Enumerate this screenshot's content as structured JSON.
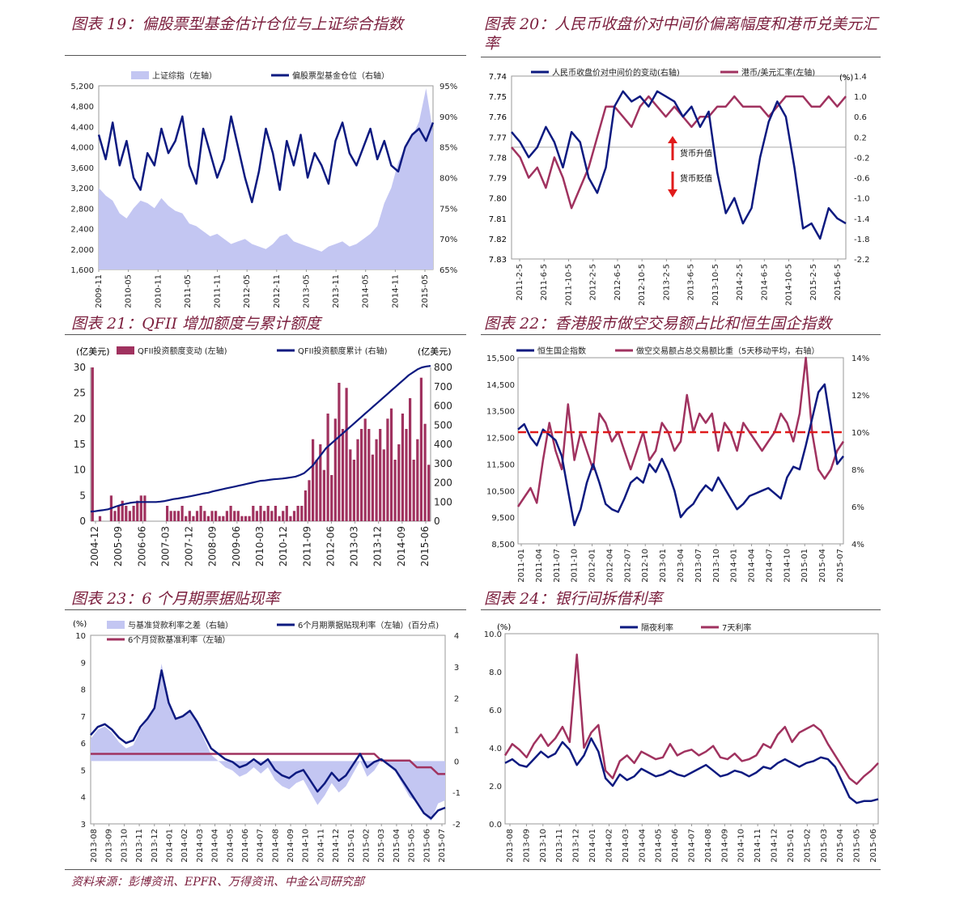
{
  "source": "资料来源：彭博资讯、EPFR、万得资讯、中金公司研究部",
  "colors": {
    "navy": "#0d1a80",
    "maroon": "#a0325f",
    "lav": "#c3c6f2",
    "red": "#e01b1b",
    "title": "#7b1e3d"
  },
  "charts": [
    {
      "id": "c19",
      "title": "图表 19：偏股票型基金估计仓位与上证综合指数",
      "chart_data": {
        "type": "area+line",
        "legend": [
          "上证综指（左轴）",
          "偏股票型基金仓位（右轴）"
        ],
        "left_ticks": [
          "1,600",
          "2,000",
          "2,400",
          "2,800",
          "3,200",
          "3,600",
          "4,000",
          "4,400",
          "4,800",
          "5,200"
        ],
        "right_ticks": [
          "65%",
          "70%",
          "75%",
          "80%",
          "85%",
          "90%",
          "95%"
        ],
        "x_ticks": [
          "2009-11",
          "2010-05",
          "2010-11",
          "2011-05",
          "2011-11",
          "2012-05",
          "2012-11",
          "2013-05",
          "2013-11",
          "2014-05",
          "2014-11",
          "2015-05"
        ],
        "ylim_left": [
          1600,
          5200
        ],
        "ylim_right": [
          65,
          95
        ],
        "series_area": [
          3200,
          3050,
          2950,
          2700,
          2600,
          2800,
          2950,
          2900,
          2800,
          3000,
          2850,
          2750,
          2700,
          2500,
          2450,
          2350,
          2250,
          2300,
          2200,
          2100,
          2150,
          2200,
          2100,
          2050,
          2000,
          2100,
          2250,
          2300,
          2150,
          2100,
          2050,
          2000,
          1950,
          2050,
          2100,
          2150,
          2050,
          2100,
          2200,
          2300,
          2450,
          2900,
          3200,
          3700,
          4000,
          4200,
          4500,
          5150,
          4300
        ],
        "series_line": [
          87,
          83,
          89,
          82,
          86,
          80,
          78,
          84,
          82,
          88,
          84,
          86,
          90,
          82,
          79,
          88,
          84,
          80,
          83,
          90,
          85,
          80,
          76,
          81,
          88,
          84,
          78,
          86,
          82,
          87,
          80,
          84,
          82,
          79,
          86,
          89,
          84,
          82,
          85,
          88,
          83,
          86,
          82,
          81,
          85,
          87,
          88,
          86,
          89
        ]
      }
    },
    {
      "id": "c20",
      "title": "图表 20：人民币收盘价对中间价偏离幅度和港币兑美元汇率",
      "chart_data": {
        "type": "line",
        "legend": [
          "人民币收盘价对中间价的变动(右轴)",
          "港币/美元汇率(左轴)"
        ],
        "left_ticks": [
          "7.74",
          "7.75",
          "7.76",
          "7.77",
          "7.78",
          "7.79",
          "7.80",
          "7.81",
          "7.82",
          "7.83"
        ],
        "right_ticks": [
          "1.4",
          "1.0",
          "0.6",
          "0.2",
          "-0.2",
          "-0.6",
          "-1.0",
          "-1.4",
          "-1.8",
          "-2.2"
        ],
        "right_unit": "(%)",
        "x_ticks": [
          "2011-2-5",
          "2011-6-5",
          "2011-10-5",
          "2012-2-5",
          "2012-6-5",
          "2012-10-5",
          "2013-2-5",
          "2013-6-5",
          "2013-10-5",
          "2014-2-5",
          "2014-6-5",
          "2014-10-5",
          "2015-2-5",
          "2015-6-5"
        ],
        "ylim_left": [
          7.74,
          7.83
        ],
        "ylim_right": [
          -2.2,
          1.4
        ],
        "annotations": [
          "货币升值",
          "货币贬值"
        ],
        "series_hkd": [
          7.775,
          7.78,
          7.79,
          7.785,
          7.795,
          7.78,
          7.79,
          7.805,
          7.795,
          7.785,
          7.77,
          7.755,
          7.755,
          7.76,
          7.765,
          7.755,
          7.75,
          7.755,
          7.76,
          7.755,
          7.76,
          7.765,
          7.76,
          7.76,
          7.755,
          7.755,
          7.75,
          7.755,
          7.755,
          7.755,
          7.76,
          7.755,
          7.75,
          7.75,
          7.75,
          7.755,
          7.755,
          7.75,
          7.755,
          7.75
        ],
        "series_cny": [
          0.3,
          0.1,
          -0.2,
          0.0,
          0.4,
          0.1,
          -0.4,
          0.3,
          0.1,
          -0.6,
          -0.9,
          -0.4,
          0.8,
          1.1,
          0.9,
          1.0,
          0.8,
          1.1,
          1.0,
          0.9,
          0.6,
          0.8,
          0.4,
          0.7,
          -0.5,
          -1.3,
          -1.0,
          -1.5,
          -1.2,
          -0.2,
          0.5,
          0.9,
          0.6,
          -0.4,
          -1.6,
          -1.5,
          -1.8,
          -1.2,
          -1.4,
          -1.5
        ]
      }
    },
    {
      "id": "c21",
      "title": "图表 21：QFII 增加额度与累计额度",
      "chart_data": {
        "type": "bar+line",
        "legend": [
          "QFII投资额度变动 (左轴)",
          "QFII投资额度累计 (右轴)"
        ],
        "left_unit": "(亿美元)",
        "right_unit": "(亿美元)",
        "left_ticks": [
          "0",
          "5",
          "10",
          "15",
          "20",
          "25",
          "30"
        ],
        "right_ticks": [
          "0",
          "100",
          "200",
          "300",
          "400",
          "500",
          "600",
          "700",
          "800"
        ],
        "x_ticks": [
          "2004-12",
          "2005-09",
          "2006-06",
          "2007-03",
          "2007-12",
          "2008-09",
          "2009-06",
          "2010-03",
          "2010-12",
          "2011-09",
          "2012-06",
          "2013-03",
          "2013-12",
          "2014-09",
          "2015-06"
        ],
        "ylim_left": [
          0,
          30
        ],
        "ylim_right": [
          0,
          800
        ],
        "bars": [
          30,
          0,
          1,
          0,
          0,
          5,
          2,
          3,
          4,
          3,
          2,
          3,
          4,
          5,
          5,
          0,
          0,
          0,
          0,
          0,
          3,
          2,
          2,
          2,
          3,
          1,
          2,
          1,
          2,
          3,
          2,
          1,
          2,
          2,
          1,
          1,
          2,
          3,
          2,
          2,
          1,
          1,
          1,
          3,
          2,
          3,
          2,
          3,
          2,
          3,
          1,
          2,
          3,
          1,
          2,
          3,
          3,
          6,
          8,
          16,
          12,
          15,
          10,
          21,
          9,
          20,
          27,
          18,
          26,
          14,
          12,
          16,
          18,
          20,
          18,
          13,
          16,
          18,
          14,
          20,
          22,
          12,
          15,
          21,
          18,
          24,
          12,
          16,
          28,
          19,
          11
        ],
        "line": [
          50,
          52,
          55,
          58,
          62,
          70,
          78,
          85,
          90,
          95,
          98,
          100,
          100,
          100,
          100,
          100,
          102,
          105,
          110,
          115,
          118,
          122,
          126,
          130,
          135,
          140,
          145,
          148,
          155,
          160,
          165,
          170,
          175,
          180,
          185,
          190,
          195,
          200,
          205,
          210,
          212,
          215,
          218,
          220,
          222,
          225,
          228,
          232,
          240,
          250,
          270,
          290,
          320,
          350,
          380,
          400,
          420,
          440,
          460,
          480,
          500,
          520,
          540,
          560,
          580,
          600,
          620,
          640,
          660,
          680,
          700,
          720,
          740,
          760,
          775,
          790,
          800,
          805,
          808
        ]
      }
    },
    {
      "id": "c22",
      "title": "图表 22：香港股市做空交易额占比和恒生国企指数",
      "chart_data": {
        "type": "line",
        "legend": [
          "恒生国企指数",
          "做空交易额占总交易额比重（5天移动平均，右轴）"
        ],
        "left_ticks": [
          "8,500",
          "9,500",
          "10,500",
          "11,500",
          "12,500",
          "13,500",
          "14,500",
          "15,500"
        ],
        "right_ticks": [
          "4%",
          "6%",
          "8%",
          "10%",
          "12%",
          "14%"
        ],
        "x_ticks": [
          "2011-01",
          "2011-04",
          "2011-07",
          "2011-10",
          "2012-01",
          "2012-04",
          "2012-07",
          "2012-10",
          "2013-01",
          "2013-04",
          "2013-07",
          "2013-10",
          "2014-01",
          "2014-04",
          "2014-07",
          "2014-10",
          "2015-01",
          "2015-04",
          "2015-07"
        ],
        "ylim_left": [
          8500,
          15500
        ],
        "ylim_right": [
          4,
          14
        ],
        "reference_line": 10,
        "series_hscei": [
          12800,
          13000,
          12500,
          12200,
          12800,
          12600,
          12400,
          11800,
          10500,
          9200,
          9800,
          10800,
          11500,
          10800,
          10000,
          9800,
          9700,
          10200,
          10800,
          11000,
          10800,
          11500,
          11200,
          11700,
          11200,
          10500,
          9500,
          9800,
          10000,
          10400,
          10700,
          10500,
          11000,
          10600,
          10200,
          9800,
          10000,
          10300,
          10400,
          10500,
          10600,
          10400,
          10200,
          11000,
          11400,
          11300,
          12200,
          13200,
          14200,
          14500,
          13000,
          11500,
          11800
        ],
        "series_short": [
          6,
          6.5,
          7,
          6.2,
          8.5,
          10.5,
          9,
          8,
          11.5,
          8.5,
          10,
          9,
          8,
          11,
          10.5,
          9.5,
          10,
          9,
          8,
          9,
          10,
          8.5,
          9,
          10.5,
          10,
          9,
          9.5,
          12,
          10,
          11,
          10.5,
          11,
          9,
          10.5,
          10,
          9,
          10.5,
          10,
          9.5,
          9,
          9.5,
          10,
          11,
          10.5,
          9.5,
          11,
          14,
          10,
          8,
          7.5,
          8,
          9,
          9.5
        ]
      }
    },
    {
      "id": "c23",
      "title": "图表 23：6 个月期票据贴现率",
      "chart_data": {
        "type": "area+line",
        "legend": [
          "与基准贷款利率之差（右轴）",
          "6个月期票据贴现利率（左轴）(百分点)",
          "6个月贷款基准利率（左轴）"
        ],
        "left_unit": "(%)",
        "left_ticks": [
          "3",
          "4",
          "5",
          "6",
          "7",
          "8",
          "9",
          "10"
        ],
        "right_ticks": [
          "-2",
          "-1",
          "0",
          "1",
          "2",
          "3",
          "4"
        ],
        "x_ticks": [
          "2013-08",
          "2013-09",
          "2013-10",
          "2013-11",
          "2013-12",
          "2014-01",
          "2014-02",
          "2014-03",
          "2014-04",
          "2014-05",
          "2014-06",
          "2014-07",
          "2014-08",
          "2014-09",
          "2014-10",
          "2014-11",
          "2014-12",
          "2015-01",
          "2015-02",
          "2015-03",
          "2015-04",
          "2015-05",
          "2015-06",
          "2015-07"
        ],
        "ylim_left": [
          3,
          10
        ],
        "ylim_right": [
          -2,
          4
        ],
        "series_rate": [
          6.3,
          6.6,
          6.7,
          6.5,
          6.2,
          6.0,
          6.1,
          6.6,
          6.9,
          7.3,
          8.7,
          7.5,
          6.9,
          7.0,
          7.2,
          6.8,
          6.3,
          5.8,
          5.6,
          5.4,
          5.3,
          5.1,
          5.2,
          5.4,
          5.2,
          5.4,
          5.0,
          4.8,
          4.7,
          4.9,
          5.0,
          4.6,
          4.2,
          4.5,
          4.9,
          4.6,
          4.8,
          5.2,
          5.6,
          5.1,
          5.3,
          5.4,
          5.2,
          5.0,
          4.6,
          4.2,
          3.8,
          3.4,
          3.2,
          3.5,
          3.6
        ],
        "series_base": [
          5.6,
          5.6,
          5.6,
          5.6,
          5.6,
          5.6,
          5.6,
          5.6,
          5.6,
          5.6,
          5.6,
          5.6,
          5.6,
          5.6,
          5.6,
          5.6,
          5.6,
          5.6,
          5.6,
          5.6,
          5.6,
          5.6,
          5.6,
          5.6,
          5.6,
          5.6,
          5.6,
          5.6,
          5.6,
          5.6,
          5.6,
          5.6,
          5.6,
          5.6,
          5.6,
          5.6,
          5.6,
          5.6,
          5.6,
          5.6,
          5.6,
          5.35,
          5.35,
          5.35,
          5.35,
          5.35,
          5.1,
          5.1,
          5.1,
          4.85,
          4.85
        ]
      }
    },
    {
      "id": "c24",
      "title": "图表 24：银行间拆借利率",
      "chart_data": {
        "type": "line",
        "legend": [
          "隔夜利率",
          "7天利率"
        ],
        "left_unit": "(%)",
        "left_ticks": [
          "0.0",
          "2.0",
          "4.0",
          "6.0",
          "8.0",
          "10.0"
        ],
        "x_ticks": [
          "2013-08",
          "2013-09",
          "2013-10",
          "2013-11",
          "2013-12",
          "2014-01",
          "2014-02",
          "2014-03",
          "2014-04",
          "2014-05",
          "2014-06",
          "2014-07",
          "2014-08",
          "2014-09",
          "2014-10",
          "2014-11",
          "2014-12",
          "2015-01",
          "2015-02",
          "2015-03",
          "2015-04",
          "2015-05",
          "2015-06"
        ],
        "ylim": [
          0,
          10
        ],
        "series_on": [
          3.2,
          3.4,
          3.1,
          3.0,
          3.4,
          3.8,
          3.5,
          3.7,
          4.3,
          3.9,
          3.1,
          3.6,
          4.5,
          3.8,
          2.4,
          2.0,
          2.6,
          2.3,
          2.5,
          2.9,
          2.7,
          2.5,
          2.6,
          2.8,
          2.6,
          2.5,
          2.7,
          2.9,
          3.1,
          2.8,
          2.5,
          2.6,
          2.8,
          2.7,
          2.5,
          2.7,
          3.0,
          2.9,
          3.2,
          3.4,
          3.2,
          3.0,
          3.2,
          3.3,
          3.5,
          3.4,
          3.0,
          2.2,
          1.4,
          1.1,
          1.2,
          1.2,
          1.3
        ],
        "series_7d": [
          3.6,
          4.2,
          3.9,
          3.5,
          4.2,
          4.7,
          4.1,
          4.5,
          5.1,
          4.3,
          8.9,
          4.0,
          4.8,
          5.2,
          2.8,
          2.4,
          3.3,
          3.6,
          3.2,
          3.8,
          3.6,
          3.4,
          3.5,
          4.2,
          3.6,
          3.8,
          3.9,
          3.6,
          3.8,
          4.1,
          3.5,
          3.4,
          3.7,
          3.3,
          3.4,
          3.6,
          4.2,
          4.0,
          4.7,
          5.1,
          4.3,
          4.8,
          5.0,
          5.2,
          4.9,
          4.2,
          3.6,
          3.0,
          2.4,
          2.1,
          2.5,
          2.8,
          3.2
        ]
      }
    }
  ]
}
